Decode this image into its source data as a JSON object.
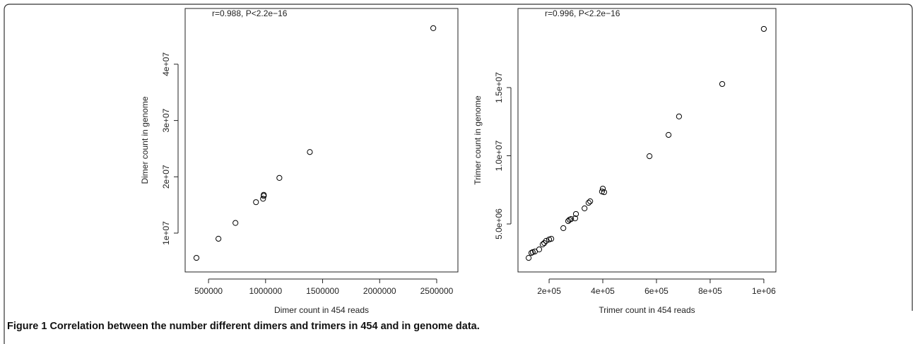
{
  "chart_data": [
    {
      "type": "scatter",
      "annotation": "r=0.988, P<2.2e−16",
      "xlabel": "Dimer count in 454 reads",
      "ylabel": "Dimer count in genome",
      "color": "#000000",
      "x": [
        394000,
        587000,
        736000,
        916000,
        978000,
        984000,
        984000,
        1121000,
        1388000,
        2470000
      ],
      "values": [
        5600000,
        9000000,
        11800000,
        15500000,
        16100000,
        16600000,
        16800000,
        19800000,
        24400000,
        46400000
      ],
      "xlim": [
        295000,
        2686000
      ],
      "ylim": [
        3100000,
        49900000
      ],
      "xticks": [
        500000,
        1000000,
        1500000,
        2000000,
        2500000
      ],
      "yticks": [
        {
          "value": 10000000,
          "label": "1e+07"
        },
        {
          "value": 20000000,
          "label": "2e+07"
        },
        {
          "value": 30000000,
          "label": "3e+07"
        },
        {
          "value": 40000000,
          "label": "4e+07"
        }
      ]
    },
    {
      "type": "scatter",
      "annotation": "r=0.996, P<2.2e−16",
      "xlabel": "Trimer count in 454 reads",
      "ylabel": "Trimer count in genome",
      "color": "#000000",
      "x": [
        123700,
        134000,
        139000,
        147000,
        163000,
        176000,
        182000,
        189000,
        200000,
        208000,
        253000,
        271000,
        276000,
        282000,
        297000,
        300000,
        332000,
        347000,
        353000,
        397000,
        400000,
        405000,
        574000,
        645000,
        684000,
        845000,
        1000000
      ],
      "values": [
        2510000,
        2880000,
        2930000,
        2980000,
        3130000,
        3500000,
        3600000,
        3760000,
        3860000,
        3910000,
        4690000,
        5210000,
        5310000,
        5360000,
        5410000,
        5730000,
        6140000,
        6550000,
        6660000,
        7380000,
        7590000,
        7330000,
        9970000,
        11530000,
        12880000,
        15260000,
        19300000
      ],
      "xlim": [
        84000,
        1045000
      ],
      "ylim": [
        1480000,
        20800000
      ],
      "xticks": [
        {
          "value": 200000,
          "label": "2e+05"
        },
        {
          "value": 400000,
          "label": "4e+05"
        },
        {
          "value": 600000,
          "label": "6e+05"
        },
        {
          "value": 800000,
          "label": "8e+05"
        },
        {
          "value": 1000000,
          "label": "1e+06"
        }
      ],
      "yticks": [
        {
          "value": 5000000,
          "label": "5.0e+06"
        },
        {
          "value": 10000000,
          "label": "1.0e+07"
        },
        {
          "value": 15000000,
          "label": "1.5e+07"
        }
      ]
    }
  ],
  "caption": {
    "label": "Figure 1",
    "text": "Correlation between the number different dimers and trimers in 454 and in genome data."
  }
}
